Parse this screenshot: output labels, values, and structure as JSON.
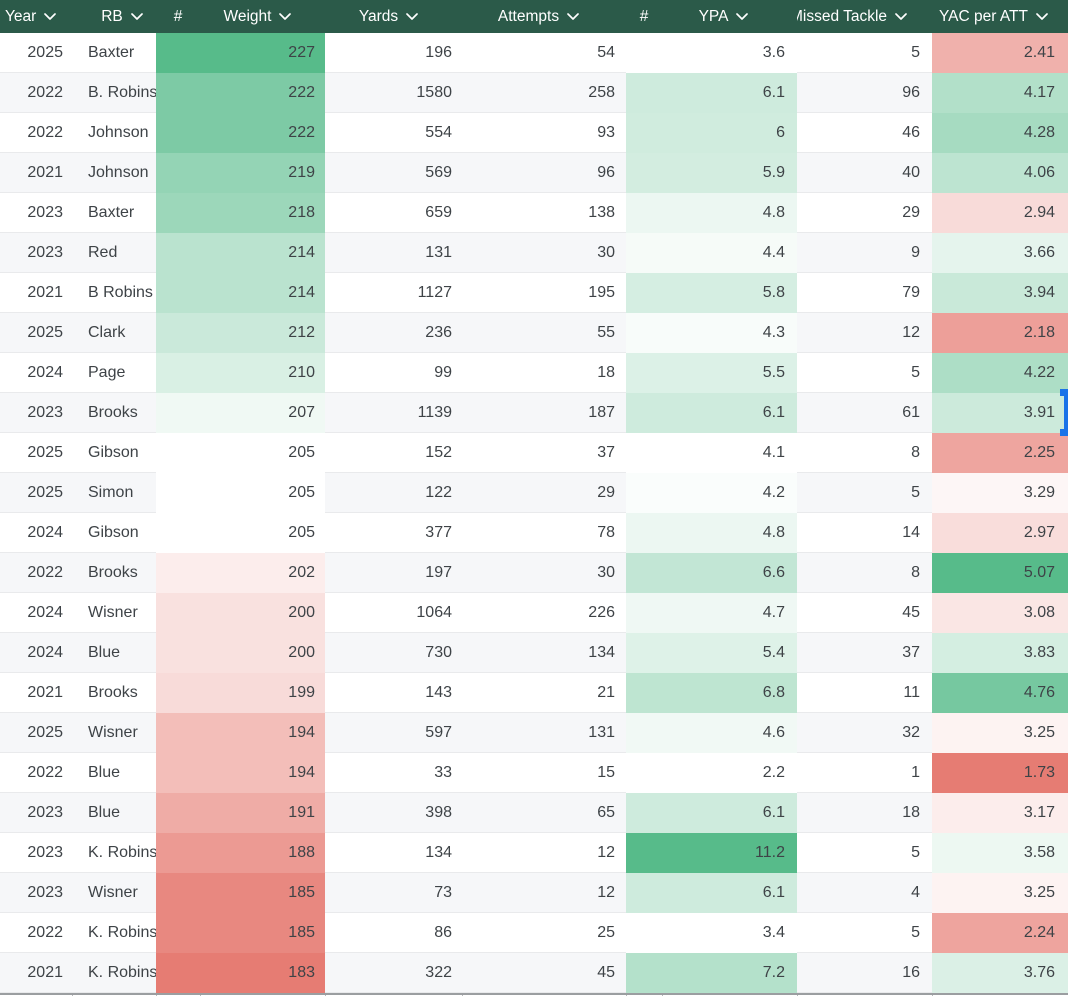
{
  "header": {
    "bg_color": "#2b5a49",
    "text_color": "#ffffff",
    "columns": [
      {
        "id": "year",
        "label": "Year",
        "dropdown": true
      },
      {
        "id": "rb",
        "label": "RB",
        "dropdown": true
      },
      {
        "id": "hash1",
        "label": "#",
        "dropdown": false
      },
      {
        "id": "weight",
        "label": "Weight",
        "dropdown": true
      },
      {
        "id": "yards",
        "label": "Yards",
        "dropdown": true
      },
      {
        "id": "attempts",
        "label": "Attempts",
        "dropdown": true
      },
      {
        "id": "hash2",
        "label": "#",
        "dropdown": false
      },
      {
        "id": "ypa",
        "label": "YPA",
        "dropdown": true
      },
      {
        "id": "missed",
        "label": "Missed Tackle",
        "dropdown": true
      },
      {
        "id": "yac",
        "label": "YAC per ATT",
        "dropdown": true
      }
    ]
  },
  "banding": {
    "odd_row": "#ffffff",
    "even_row": "#f6f7f9"
  },
  "conditional_format": {
    "scale_green": "#57bb8a",
    "scale_white": "#ffffff",
    "scale_red": "#e67c73",
    "colored_columns": [
      "#",
      "Weight",
      "#",
      "YPA",
      "YAC per ATT"
    ]
  },
  "selection": {
    "color": "#1a73e8",
    "attached_row_index": 10,
    "side": "right-edge"
  },
  "rows": [
    {
      "year": "2025",
      "rb": "Baxter",
      "weight": "227",
      "yards": "196",
      "attempts": "54",
      "ypa": "3.6",
      "missed": "5",
      "yac": "2.41",
      "weight_bg": "#57bb8a",
      "ypa_bg": "#ffffff",
      "yac_bg": "#f0b1ac"
    },
    {
      "year": "2022",
      "rb": "B. Robins",
      "weight": "222",
      "yards": "1580",
      "attempts": "258",
      "ypa": "6.1",
      "missed": "96",
      "yac": "4.17",
      "weight_bg": "#7dcaa5",
      "ypa_bg": "#ceebdd",
      "yac_bg": "#b2e0c9"
    },
    {
      "year": "2022",
      "rb": "Johnson",
      "weight": "222",
      "yards": "554",
      "attempts": "93",
      "ypa": "6",
      "missed": "46",
      "yac": "4.28",
      "weight_bg": "#7dcaa5",
      "ypa_bg": "#d0ecde",
      "yac_bg": "#a6dbc1"
    },
    {
      "year": "2021",
      "rb": "Johnson",
      "weight": "219",
      "yards": "569",
      "attempts": "96",
      "ypa": "5.9",
      "missed": "40",
      "yac": "4.06",
      "weight_bg": "#94d4b5",
      "ypa_bg": "#d3ede0",
      "yac_bg": "#bde4d1"
    },
    {
      "year": "2023",
      "rb": "Baxter",
      "weight": "218",
      "yards": "659",
      "attempts": "138",
      "ypa": "4.8",
      "missed": "29",
      "yac": "2.94",
      "weight_bg": "#9cd7ba",
      "ypa_bg": "#ecf7f2",
      "yac_bg": "#f8dbd9"
    },
    {
      "year": "2023",
      "rb": "Red",
      "weight": "214",
      "yards": "131",
      "attempts": "30",
      "ypa": "4.4",
      "missed": "9",
      "yac": "3.66",
      "weight_bg": "#bae3cf",
      "ypa_bg": "#f6fbf8",
      "yac_bg": "#e5f4ed"
    },
    {
      "year": "2021",
      "rb": "B Robins",
      "weight": "214",
      "yards": "1127",
      "attempts": "195",
      "ypa": "5.8",
      "missed": "79",
      "yac": "3.94",
      "weight_bg": "#bae3cf",
      "ypa_bg": "#d5eee2",
      "yac_bg": "#c9e9d9"
    },
    {
      "year": "2025",
      "rb": "Clark",
      "weight": "212",
      "yards": "236",
      "attempts": "55",
      "ypa": "4.3",
      "missed": "12",
      "yac": "2.18",
      "weight_bg": "#cae9da",
      "ypa_bg": "#f8fcfa",
      "yac_bg": "#ed9f99"
    },
    {
      "year": "2024",
      "rb": "Page",
      "weight": "210",
      "yards": "99",
      "attempts": "18",
      "ypa": "5.5",
      "missed": "5",
      "yac": "4.22",
      "weight_bg": "#d9f0e4",
      "ypa_bg": "#dcf1e7",
      "yac_bg": "#addec6"
    },
    {
      "year": "2023",
      "rb": "Brooks",
      "weight": "207",
      "yards": "1139",
      "attempts": "187",
      "ypa": "6.1",
      "missed": "61",
      "yac": "3.91",
      "weight_bg": "#f0f9f4",
      "ypa_bg": "#ceebdd",
      "yac_bg": "#cceadb"
    },
    {
      "year": "2025",
      "rb": "Gibson",
      "weight": "205",
      "yards": "152",
      "attempts": "37",
      "ypa": "4.1",
      "missed": "8",
      "yac": "2.25",
      "weight_bg": "#ffffff",
      "ypa_bg": "#ffffff",
      "yac_bg": "#eea59f"
    },
    {
      "year": "2025",
      "rb": "Simon",
      "weight": "205",
      "yards": "122",
      "attempts": "29",
      "ypa": "4.2",
      "missed": "5",
      "yac": "3.29",
      "weight_bg": "#ffffff",
      "ypa_bg": "#fafdfc",
      "yac_bg": "#fdf6f6"
    },
    {
      "year": "2024",
      "rb": "Gibson",
      "weight": "205",
      "yards": "377",
      "attempts": "78",
      "ypa": "4.8",
      "missed": "14",
      "yac": "2.97",
      "weight_bg": "#ffffff",
      "ypa_bg": "#ecf7f2",
      "yac_bg": "#f9dddb"
    },
    {
      "year": "2022",
      "rb": "Brooks",
      "weight": "202",
      "yards": "197",
      "attempts": "30",
      "ypa": "6.6",
      "missed": "8",
      "yac": "5.07",
      "weight_bg": "#fcedec",
      "ypa_bg": "#c2e6d5",
      "yac_bg": "#57bb8a"
    },
    {
      "year": "2024",
      "rb": "Wisner",
      "weight": "200",
      "yards": "1064",
      "attempts": "226",
      "ypa": "4.7",
      "missed": "45",
      "yac": "3.08",
      "weight_bg": "#f9e1df",
      "ypa_bg": "#eff8f4",
      "yac_bg": "#fae6e4"
    },
    {
      "year": "2024",
      "rb": "Blue",
      "weight": "200",
      "yards": "730",
      "attempts": "134",
      "ypa": "5.4",
      "missed": "37",
      "yac": "3.83",
      "weight_bg": "#f9e1df",
      "ypa_bg": "#def2e8",
      "yac_bg": "#d4eee1"
    },
    {
      "year": "2021",
      "rb": "Brooks",
      "weight": "199",
      "yards": "143",
      "attempts": "21",
      "ypa": "6.8",
      "missed": "11",
      "yac": "4.76",
      "weight_bg": "#f8dbd9",
      "ypa_bg": "#bee5d1",
      "yac_bg": "#76c8a0"
    },
    {
      "year": "2025",
      "rb": "Wisner",
      "weight": "194",
      "yards": "597",
      "attempts": "131",
      "ypa": "4.6",
      "missed": "32",
      "yac": "3.25",
      "weight_bg": "#f3beb9",
      "ypa_bg": "#f1f9f5",
      "yac_bg": "#fdf3f2"
    },
    {
      "year": "2022",
      "rb": "Blue",
      "weight": "194",
      "yards": "33",
      "attempts": "15",
      "ypa": "2.2",
      "missed": "1",
      "yac": "1.73",
      "weight_bg": "#f3beb9",
      "ypa_bg": "#ffffff",
      "yac_bg": "#e67c73"
    },
    {
      "year": "2023",
      "rb": "Blue",
      "weight": "191",
      "yards": "398",
      "attempts": "65",
      "ypa": "6.1",
      "missed": "18",
      "yac": "3.17",
      "weight_bg": "#efaca6",
      "ypa_bg": "#ceebdd",
      "yac_bg": "#fcedec"
    },
    {
      "year": "2023",
      "rb": "K. Robins",
      "weight": "188",
      "yards": "134",
      "attempts": "12",
      "ypa": "11.2",
      "missed": "5",
      "yac": "3.58",
      "weight_bg": "#ec9a93",
      "ypa_bg": "#57bb8a",
      "yac_bg": "#edf8f2"
    },
    {
      "year": "2023",
      "rb": "Wisner",
      "weight": "185",
      "yards": "73",
      "attempts": "12",
      "ypa": "6.1",
      "missed": "4",
      "yac": "3.25",
      "weight_bg": "#e88880",
      "ypa_bg": "#ceebdd",
      "yac_bg": "#fdf3f2"
    },
    {
      "year": "2022",
      "rb": "K. Robins",
      "weight": "185",
      "yards": "86",
      "attempts": "25",
      "ypa": "3.4",
      "missed": "5",
      "yac": "2.24",
      "weight_bg": "#e88880",
      "ypa_bg": "#ffffff",
      "yac_bg": "#eea49e"
    },
    {
      "year": "2021",
      "rb": "K. Robins",
      "weight": "183",
      "yards": "322",
      "attempts": "45",
      "ypa": "7.2",
      "missed": "16",
      "yac": "3.76",
      "weight_bg": "#e67c73",
      "ypa_bg": "#b4e1cb",
      "yac_bg": "#dbf0e6"
    }
  ]
}
